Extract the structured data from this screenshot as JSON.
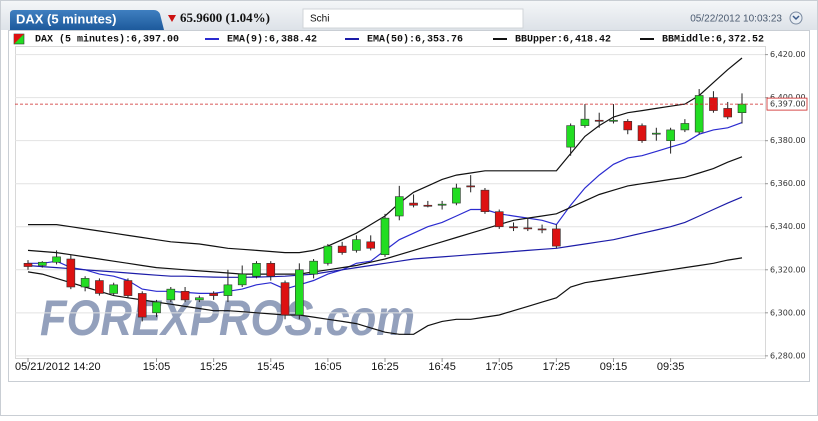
{
  "header": {
    "instrument": "DAX (5 minutes)",
    "change": "65.9600 (1.04%)",
    "menu": "Schi",
    "timestamp": "05/22/2012 10:03:23"
  },
  "chart_data": {
    "type": "candlestick",
    "watermark": "FOREXPROS.com",
    "categories": [
      "05/21/2012 14:20",
      null,
      null,
      null,
      null,
      null,
      null,
      null,
      null,
      "15:05",
      null,
      null,
      null,
      "15:25",
      null,
      null,
      null,
      "15:45",
      null,
      null,
      null,
      "16:05",
      null,
      null,
      null,
      "16:25",
      null,
      null,
      null,
      "16:45",
      null,
      null,
      null,
      "17:05",
      null,
      null,
      null,
      "17:25",
      null,
      null,
      null,
      "09:15",
      null,
      null,
      null,
      "09:35",
      null,
      null,
      null,
      null,
      null
    ],
    "series": [
      {
        "name": "DAX (5 minutes):6,397.00",
        "type": "candlestick",
        "up_color": "#22dd22",
        "down_color": "#dd1111",
        "open": [
          6323,
          6322,
          6323.5,
          6325,
          6312,
          6315,
          6309,
          6315,
          6309,
          6300,
          6306,
          6310,
          6306,
          6309,
          6308,
          6313,
          6317,
          6323,
          6314,
          6299,
          6318,
          6323,
          6331,
          6329,
          6333,
          6327,
          6345,
          6351,
          6350,
          6350,
          6351,
          6359,
          6357,
          6347,
          6340,
          6339.5,
          6339,
          6339,
          6377,
          6387,
          6389.5,
          6389,
          6389,
          6387,
          6383,
          6380,
          6385,
          6384,
          6400,
          6395,
          6393
        ],
        "high": [
          6324.5,
          6324,
          6329,
          6327,
          6317,
          6316,
          6314,
          6316,
          6310,
          6306,
          6312,
          6312,
          6308,
          6310,
          6320,
          6322,
          6324,
          6324,
          6315,
          6323,
          6325,
          6332,
          6333,
          6336,
          6336,
          6346,
          6359,
          6355,
          6352,
          6352,
          6360,
          6364,
          6358,
          6348,
          6342,
          6344,
          6341,
          6341,
          6388,
          6397,
          6393,
          6397,
          6390,
          6388,
          6386,
          6386,
          6390,
          6404,
          6403,
          6398,
          6402
        ],
        "low": [
          6320,
          6321,
          6322.5,
          6311,
          6310,
          6308,
          6308,
          6307,
          6296,
          6298,
          6305,
          6305,
          6305,
          6306,
          6305,
          6312,
          6316,
          6315,
          6297,
          6297,
          6316,
          6322,
          6327,
          6328,
          6329,
          6326,
          6343,
          6349,
          6349,
          6348,
          6350,
          6356,
          6346,
          6339,
          6338,
          6338,
          6337,
          6330,
          6373,
          6386,
          6386,
          6388,
          6383,
          6379,
          6380,
          6374,
          6384,
          6383,
          6393,
          6390,
          6388
        ],
        "close": [
          6321.5,
          6323.5,
          6326,
          6312,
          6316,
          6309,
          6313,
          6308,
          6298,
          6305,
          6311,
          6306,
          6307,
          6308,
          6313,
          6318,
          6323,
          6317,
          6299,
          6320,
          6324,
          6331,
          6328,
          6334,
          6330,
          6344,
          6354,
          6350,
          6349.5,
          6350.5,
          6358,
          6358.5,
          6347,
          6340,
          6339.5,
          6339,
          6338.5,
          6331,
          6387,
          6390,
          6389,
          6389.5,
          6385,
          6380,
          6383.5,
          6385,
          6388,
          6401,
          6394,
          6391,
          6397
        ]
      },
      {
        "name": "EMA(9):6,388.42",
        "type": "line",
        "color": "#2b2bd0",
        "values": [
          6323,
          6323,
          6324,
          6321,
          6320,
          6318,
          6317,
          6315,
          6311,
          6310,
          6310,
          6309.5,
          6309,
          6309,
          6310,
          6311,
          6313,
          6314,
          6311,
          6313,
          6315,
          6318,
          6320,
          6323,
          6324,
          6329,
          6334,
          6337,
          6340,
          6342,
          6345,
          6348,
          6348,
          6346,
          6345,
          6344,
          6343,
          6341,
          6350,
          6358,
          6364,
          6369,
          6372,
          6373,
          6375,
          6377,
          6379,
          6383,
          6385,
          6386,
          6388.42
        ]
      },
      {
        "name": "EMA(50):6,353.76",
        "type": "line",
        "color": "#1c1ca8",
        "values": [
          6322,
          6321.5,
          6321,
          6320.5,
          6320,
          6319.5,
          6319,
          6318.5,
          6318,
          6317.5,
          6317,
          6317,
          6316.8,
          6316.6,
          6316.5,
          6316.5,
          6316.6,
          6316.8,
          6317,
          6317.5,
          6318,
          6319,
          6320,
          6321,
          6322,
          6323,
          6324,
          6325,
          6325.5,
          6326,
          6326.5,
          6327,
          6327.5,
          6328,
          6328.5,
          6329,
          6329.5,
          6330,
          6331,
          6332,
          6333,
          6334,
          6335.5,
          6337,
          6338.5,
          6340,
          6342,
          6345,
          6348,
          6351,
          6353.76
        ]
      },
      {
        "name": "BBUpper:6,418.42",
        "type": "line",
        "color": "#111111",
        "values": [
          6341,
          6341,
          6341,
          6340,
          6339,
          6338,
          6337,
          6336,
          6335,
          6334,
          6333,
          6332.5,
          6332,
          6331,
          6330,
          6329.5,
          6329,
          6328.5,
          6328,
          6328,
          6329,
          6331,
          6334,
          6337,
          6341,
          6345,
          6351,
          6356,
          6359,
          6362,
          6364,
          6365,
          6366,
          6366,
          6366,
          6366,
          6366,
          6366,
          6374,
          6382,
          6387,
          6391,
          6393,
          6394,
          6395,
          6396,
          6397,
          6401,
          6407,
          6413,
          6418.42
        ]
      },
      {
        "name": "BBMiddle:6,372.52",
        "type": "line",
        "color": "#111111",
        "values": [
          6329,
          6328.5,
          6328,
          6327,
          6326,
          6325,
          6324,
          6323,
          6322,
          6321,
          6320.5,
          6320,
          6319.5,
          6319,
          6318.5,
          6318,
          6318,
          6318,
          6318,
          6318,
          6319,
          6320,
          6321,
          6322,
          6323.5,
          6325,
          6327,
          6329,
          6331,
          6333,
          6335,
          6337,
          6339,
          6341,
          6343,
          6344,
          6345,
          6346,
          6349,
          6352,
          6355,
          6357,
          6359,
          6360,
          6361,
          6362,
          6363,
          6365,
          6367,
          6370,
          6372.52
        ]
      },
      {
        "type": "line",
        "color": "#111111",
        "values": [
          6319,
          6318,
          6316,
          6314,
          6312,
          6310,
          6308,
          6307,
          6306,
          6305,
          6304,
          6303,
          6302,
          6301,
          6301,
          6300.5,
          6300,
          6299.5,
          6299,
          6299,
          6298,
          6297,
          6296,
          6295,
          6293,
          6291,
          6290,
          6290,
          6294,
          6296,
          6297,
          6297,
          6298,
          6299,
          6301,
          6303,
          6305,
          6307,
          6312,
          6314,
          6315,
          6316,
          6317,
          6318,
          6319,
          6320,
          6321,
          6322,
          6323,
          6324.5,
          6325.5
        ]
      }
    ],
    "ylim": [
      6279,
      6424
    ],
    "yticks": [
      {
        "value": 6280,
        "label": "6,280.00"
      },
      {
        "value": 6300,
        "label": "6,300.00"
      },
      {
        "value": 6320,
        "label": "6,320.00"
      },
      {
        "value": 6340,
        "label": "6,340.00"
      },
      {
        "value": 6360,
        "label": "6,360.00"
      },
      {
        "value": 6380,
        "label": "6,380.00"
      },
      {
        "value": 6400,
        "label": "6,400.00"
      },
      {
        "value": 6420,
        "label": "6,420.00"
      }
    ],
    "grid": true,
    "axis_side": "right",
    "current_price": {
      "value": 6397,
      "label": "6,397.00",
      "color": "#cc2222"
    }
  }
}
